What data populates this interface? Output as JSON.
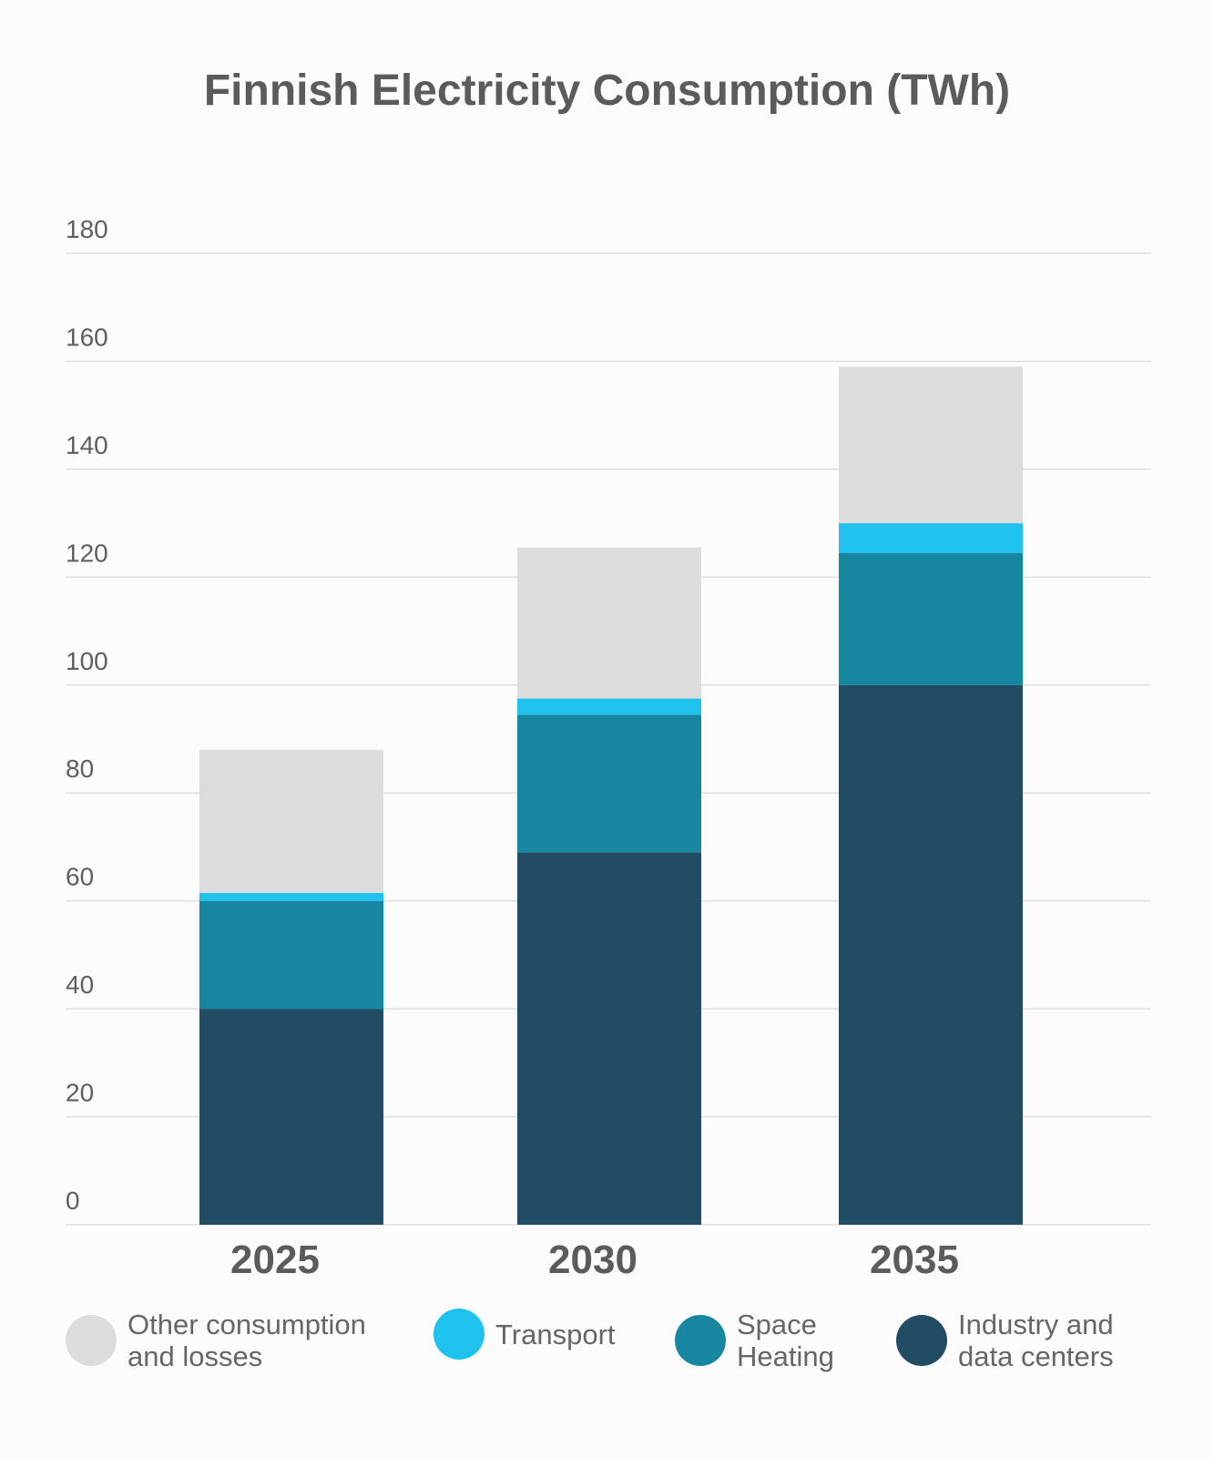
{
  "chart_data": {
    "type": "bar",
    "stacked": true,
    "title": "Finnish Electricity Consumption (TWh)",
    "xlabel": "",
    "ylabel": "",
    "categories": [
      "2025",
      "2030",
      "2035"
    ],
    "y_ticks": [
      "0",
      "20",
      "40",
      "60",
      "80",
      "100",
      "120",
      "140",
      "160",
      "180"
    ],
    "ylim": [
      0,
      180
    ],
    "grid": true,
    "legend_position": "bottom",
    "series": [
      {
        "name": "Industry and\ndata centers",
        "color": "#224b64",
        "values": [
          40,
          69,
          100
        ]
      },
      {
        "name": "Space\nHeating",
        "color": "#1786a1",
        "values": [
          20,
          25.5,
          24.5
        ]
      },
      {
        "name": "Transport",
        "color": "#1fc2ec",
        "values": [
          1.5,
          3,
          5.5
        ]
      },
      {
        "name": "Other consumption\nand losses",
        "color": "#dcdcdc",
        "values": [
          26.5,
          28,
          29
        ]
      }
    ],
    "legend_order": [
      3,
      2,
      1,
      0
    ]
  }
}
